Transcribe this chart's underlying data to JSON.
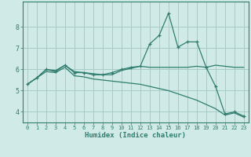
{
  "x": [
    0,
    1,
    2,
    3,
    4,
    5,
    6,
    7,
    8,
    9,
    10,
    11,
    12,
    13,
    14,
    15,
    16,
    17,
    18,
    19,
    20,
    21,
    22,
    23
  ],
  "line1": [
    5.3,
    5.6,
    6.0,
    5.9,
    6.2,
    5.85,
    5.85,
    5.75,
    5.75,
    5.85,
    6.0,
    6.1,
    6.15,
    7.2,
    7.6,
    8.65,
    7.05,
    7.3,
    7.3,
    6.1,
    5.2,
    3.9,
    4.0,
    3.8
  ],
  "line2": [
    5.3,
    5.6,
    6.0,
    5.95,
    6.2,
    5.9,
    5.85,
    5.8,
    5.75,
    5.75,
    5.95,
    6.05,
    6.15,
    6.1,
    6.1,
    6.1,
    6.1,
    6.1,
    6.15,
    6.1,
    6.2,
    6.15,
    6.1,
    6.1
  ],
  "line3": [
    5.3,
    5.6,
    5.9,
    5.85,
    6.1,
    5.7,
    5.65,
    5.55,
    5.5,
    5.45,
    5.4,
    5.35,
    5.3,
    5.2,
    5.1,
    5.0,
    4.85,
    4.7,
    4.55,
    4.35,
    4.15,
    3.85,
    3.95,
    3.75
  ],
  "line_color": "#2e7d6e",
  "background_color": "#d0ebe7",
  "grid_color": "#a8ccc8",
  "xlabel": "Humidex (Indice chaleur)",
  "ylim": [
    3.5,
    9.2
  ],
  "xlim": [
    -0.5,
    23.5
  ],
  "yticks": [
    4,
    5,
    6,
    7,
    8
  ],
  "xticks": [
    0,
    1,
    2,
    3,
    4,
    5,
    6,
    7,
    8,
    9,
    10,
    11,
    12,
    13,
    14,
    15,
    16,
    17,
    18,
    19,
    20,
    21,
    22,
    23
  ]
}
